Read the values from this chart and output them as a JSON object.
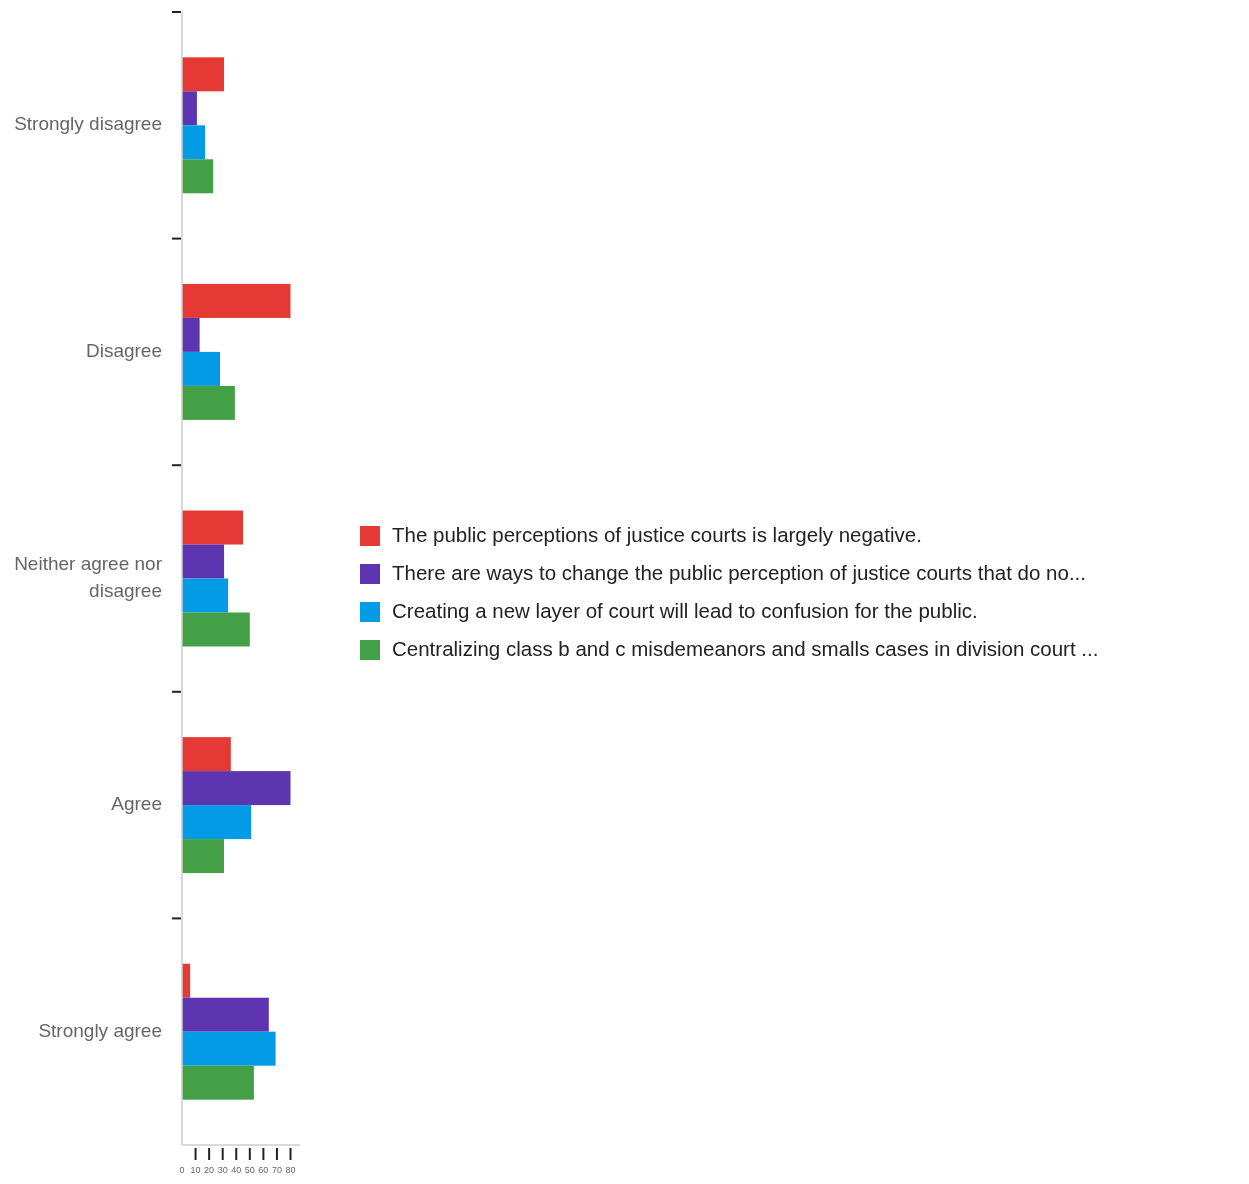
{
  "chart_data": {
    "type": "bar",
    "orientation": "horizontal",
    "categories": [
      "Strongly disagree",
      "Disagree",
      "Neither agree nor disagree",
      "Agree",
      "Strongly agree"
    ],
    "series": [
      {
        "name": "The public perceptions of justice courts is largely negative.",
        "color": "#e53935",
        "values": [
          31,
          80,
          45,
          36,
          6
        ]
      },
      {
        "name": "There are ways to change the public perception of justice courts that do no...",
        "color": "#5e35b1",
        "values": [
          11,
          13,
          31,
          80,
          64
        ]
      },
      {
        "name": "Creating a new layer of court will lead to confusion for the public.",
        "color": "#039be5",
        "values": [
          17,
          28,
          34,
          51,
          69
        ]
      },
      {
        "name": "Centralizing class b and c misdemeanors and smalls cases in division court ...",
        "color": "#43a047",
        "values": [
          23,
          39,
          50,
          31,
          53
        ]
      }
    ],
    "xlim": [
      0,
      87
    ],
    "xticks": [
      0,
      10,
      20,
      30,
      40,
      50,
      60,
      70,
      80
    ],
    "legend": "right",
    "grid": false
  }
}
